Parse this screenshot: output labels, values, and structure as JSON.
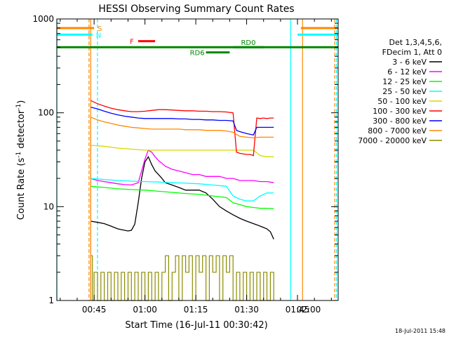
{
  "chart_data": {
    "type": "line",
    "title": "HESSI Observing Summary Count Rates",
    "xlabel": "Start Time (16-Jul-11 00:30:42)",
    "ylabel_main": "Count Rate (s",
    "ylabel_sup1": "-1",
    "ylabel_mid": " detector",
    "ylabel_sup2": "-1",
    "ylabel_end": ")",
    "xlim": [
      34,
      117
    ],
    "ylim": [
      1,
      1000
    ],
    "yscale": "log",
    "x_ticks": [
      {
        "value": 45,
        "label": "00:45"
      },
      {
        "value": 60,
        "label": "01:00"
      },
      {
        "value": 75,
        "label": "01:15"
      },
      {
        "value": 90,
        "label": "01:30"
      },
      {
        "value": 105,
        "label": "01:45"
      },
      {
        "value": 120,
        "label": "02:00"
      }
    ],
    "y_ticks": [
      {
        "value": 1,
        "label": "1"
      },
      {
        "value": 10,
        "label": "10"
      },
      {
        "value": 100,
        "label": "100"
      },
      {
        "value": 1000,
        "label": "1000"
      }
    ],
    "legend": {
      "placement": "right",
      "header1": "Det 1,3,4,5,6,",
      "header2": "FDecim 1, Att 0"
    },
    "series": [
      {
        "name": "3 - 6 keV",
        "color": "#000000",
        "x": [
          44,
          46,
          48,
          50,
          52,
          54,
          55,
          56,
          57,
          58,
          59,
          60,
          61,
          62,
          63,
          64,
          65,
          66,
          68,
          70,
          72,
          74,
          76,
          78,
          80,
          82,
          84,
          86,
          88,
          90,
          91,
          92,
          93,
          94,
          95,
          96,
          97,
          98
        ],
        "y": [
          7,
          6.8,
          6.6,
          6.2,
          5.8,
          5.6,
          5.5,
          5.6,
          6.5,
          11,
          20,
          30,
          34,
          28,
          24,
          22,
          20,
          18,
          17,
          16,
          15,
          15,
          15,
          14,
          12,
          10,
          9,
          8.2,
          7.5,
          7,
          6.8,
          6.6,
          6.4,
          6.2,
          6,
          5.8,
          5.4,
          4.5
        ]
      },
      {
        "name": "6 - 12 keV",
        "color": "#ff00ff",
        "x": [
          44,
          46,
          48,
          50,
          52,
          54,
          56,
          58,
          59,
          60,
          61,
          62,
          63,
          64,
          65,
          66,
          68,
          70,
          72,
          74,
          76,
          78,
          80,
          82,
          84,
          86,
          88,
          90,
          92,
          94,
          96,
          98
        ],
        "y": [
          20,
          19,
          18.5,
          18,
          17.5,
          17.2,
          17,
          18,
          24,
          32,
          40,
          38,
          34,
          31,
          29,
          27,
          25,
          24,
          23,
          22,
          22,
          21,
          21,
          21,
          20,
          20,
          19,
          19,
          19,
          18.5,
          18.5,
          18
        ]
      },
      {
        "name": "12 - 25 keV",
        "color": "#00ff00",
        "x": [
          44,
          48,
          52,
          56,
          60,
          64,
          68,
          72,
          76,
          80,
          84,
          86,
          88,
          90,
          92,
          94,
          96,
          98
        ],
        "y": [
          16.5,
          16,
          15.5,
          15.2,
          15,
          14.6,
          14.2,
          13.8,
          13.5,
          13,
          12.5,
          11,
          10.5,
          10,
          9.8,
          9.6,
          9.6,
          9.5
        ]
      },
      {
        "name": "25 - 50 keV",
        "color": "#00ffff",
        "x": [
          44,
          48,
          52,
          56,
          60,
          64,
          68,
          72,
          76,
          80,
          84,
          86,
          88,
          90,
          92,
          94,
          96,
          98
        ],
        "y": [
          20,
          19.5,
          19,
          18.7,
          18.5,
          18.3,
          18,
          17.8,
          17.5,
          17,
          16.5,
          13,
          12,
          11.5,
          11.5,
          13,
          14,
          14
        ]
      },
      {
        "name": "50 - 100 keV",
        "color": "#d8d800",
        "x": [
          44,
          48,
          52,
          56,
          60,
          64,
          68,
          72,
          76,
          80,
          84,
          86,
          88,
          90,
          92,
          94,
          96,
          98
        ],
        "y": [
          45,
          44,
          42,
          41,
          40,
          40,
          40,
          40,
          40,
          40,
          40,
          40,
          40,
          40,
          40,
          35,
          34,
          34
        ]
      },
      {
        "name": "100 - 300 keV",
        "color": "#ff0000",
        "x": [
          44,
          46,
          48,
          50,
          52,
          54,
          56,
          58,
          60,
          62,
          64,
          66,
          68,
          70,
          72,
          74,
          76,
          78,
          80,
          82,
          84,
          86,
          87,
          88,
          90,
          91,
          92,
          93,
          94,
          95,
          96,
          97,
          98
        ],
        "y": [
          135,
          125,
          118,
          112,
          108,
          105,
          103,
          103,
          104,
          106,
          108,
          108,
          107,
          106,
          105,
          105,
          104,
          104,
          103,
          103,
          102,
          100,
          38,
          37,
          36,
          36,
          35,
          88,
          87,
          88,
          87,
          88,
          88
        ]
      },
      {
        "name": "300 - 800 keV",
        "color": "#0000ff",
        "x": [
          44,
          46,
          48,
          50,
          52,
          54,
          56,
          58,
          60,
          62,
          64,
          66,
          68,
          70,
          72,
          74,
          76,
          78,
          80,
          82,
          84,
          86,
          87,
          88,
          90,
          92,
          93,
          94,
          96,
          98
        ],
        "y": [
          115,
          110,
          104,
          99,
          95,
          92,
          90,
          88,
          87,
          87,
          87,
          87,
          87,
          86,
          86,
          85,
          85,
          84,
          84,
          83,
          83,
          82,
          65,
          63,
          60,
          58,
          70,
          70,
          70,
          70
        ]
      },
      {
        "name": "800 - 7000 keV",
        "color": "#ff8800",
        "x": [
          44,
          46,
          48,
          50,
          52,
          54,
          56,
          58,
          60,
          62,
          64,
          66,
          68,
          70,
          72,
          74,
          76,
          78,
          80,
          82,
          84,
          86,
          88,
          90,
          92,
          94,
          96,
          98
        ],
        "y": [
          90,
          84,
          80,
          77,
          74,
          72,
          70,
          69,
          68,
          67,
          67,
          67,
          67,
          67,
          66,
          66,
          66,
          65,
          65,
          65,
          64,
          62,
          56,
          55,
          54,
          55,
          55,
          55
        ]
      },
      {
        "name": "7000 - 20000 keV",
        "color": "#8c8c00",
        "x": [
          44,
          44.5,
          45,
          46,
          47,
          48,
          49,
          50,
          51,
          52,
          53,
          54,
          55,
          56,
          57,
          58,
          59,
          60,
          61,
          62,
          63,
          64,
          65,
          66,
          67,
          68,
          69,
          70,
          71,
          72,
          73,
          74,
          75,
          76,
          77,
          78,
          79,
          80,
          81,
          82,
          83,
          84,
          85,
          86,
          87,
          88,
          89,
          90,
          91,
          92,
          93,
          94,
          95,
          96,
          97,
          98
        ],
        "y": [
          3,
          1,
          2,
          1,
          2,
          1,
          2,
          1,
          2,
          1,
          2,
          1,
          2,
          1,
          2,
          1,
          2,
          1,
          2,
          1,
          2,
          1,
          2,
          3,
          1,
          2,
          3,
          1,
          3,
          2,
          3,
          1,
          3,
          2,
          3,
          1,
          3,
          2,
          3,
          1,
          3,
          2,
          3,
          1,
          2,
          1,
          2,
          1,
          2,
          1,
          2,
          1,
          2,
          1,
          2,
          1
        ]
      }
    ],
    "state_bars": [
      {
        "label": "S",
        "x0": 34,
        "x1": 45,
        "y": 800,
        "color": "#ff8800"
      },
      {
        "label": "S",
        "x0": 106,
        "x1": 117,
        "y": 800,
        "color": "#ff8800"
      },
      {
        "label": "N",
        "x0": 34,
        "x1": 44.5,
        "y": 680,
        "color": "#00ffff"
      },
      {
        "label": "N",
        "x0": 105,
        "x1": 117,
        "y": 680,
        "color": "#00ffff"
      },
      {
        "label": "F",
        "x0": 58,
        "x1": 63,
        "y": 580,
        "color": "#ff0000"
      },
      {
        "label": "RD6",
        "x0": 34,
        "x1": 117,
        "y": 500,
        "color": "#008800"
      },
      {
        "label": "RD0",
        "x0": 86,
        "x1": 95,
        "y": 500,
        "color": "#008800"
      },
      {
        "label": "RD6",
        "x0": 78,
        "x1": 85,
        "y": 440,
        "color": "#008800"
      }
    ],
    "vlines": [
      {
        "x": 34,
        "color": "#00ffff",
        "style": "solid"
      },
      {
        "x": 43.5,
        "color": "#ff8800",
        "style": "dashed"
      },
      {
        "x": 46,
        "color": "#00ffff",
        "style": "dashed"
      },
      {
        "x": 44,
        "color": "#ff8800",
        "style": "solid"
      },
      {
        "x": 103,
        "color": "#00ffff",
        "style": "solid"
      },
      {
        "x": 106.5,
        "color": "#ff8800",
        "style": "solid"
      },
      {
        "x": 116,
        "color": "#ff8800",
        "style": "dashed"
      },
      {
        "x": 116.5,
        "color": "#00ffff",
        "style": "dashed"
      }
    ],
    "grid": false,
    "timestamp": "18-Jul-2011 15:48"
  }
}
